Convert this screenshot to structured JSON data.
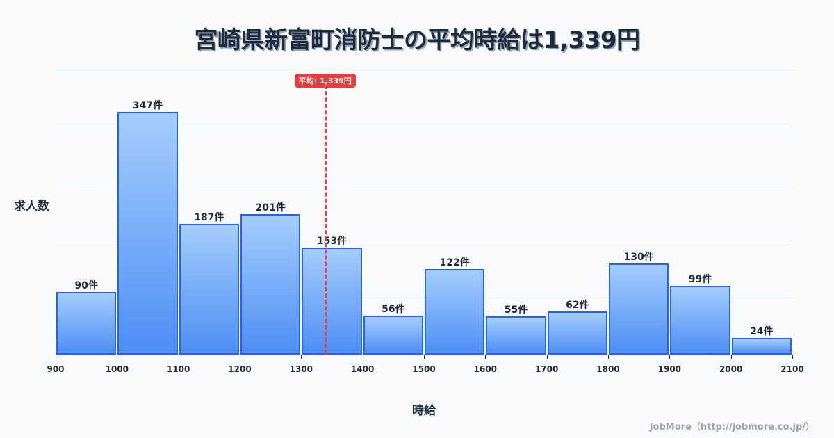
{
  "header": {
    "title": "宮崎県新富町消防士の平均時給は1,339円"
  },
  "axes": {
    "ylabel": "求人数",
    "xlabel": "時給"
  },
  "average": {
    "label": "平均: 1,339円",
    "value": 1339,
    "color": "#e53e3e"
  },
  "footer": {
    "credit": "JobMore（http://jobmore.co.jp/）"
  },
  "colors": {
    "bar_border": "#2563eb",
    "bar_top": "#a5cdfc",
    "bar_bottom": "#4d8ef5",
    "grid": "#e2e8f0"
  },
  "chart_data": {
    "type": "bar",
    "title": "宮崎県新富町消防士の平均時給は1,339円",
    "xlabel": "時給",
    "ylabel": "求人数",
    "bins": [
      [
        900,
        1000
      ],
      [
        1000,
        1100
      ],
      [
        1100,
        1200
      ],
      [
        1200,
        1300
      ],
      [
        1300,
        1400
      ],
      [
        1400,
        1500
      ],
      [
        1500,
        1600
      ],
      [
        1600,
        1700
      ],
      [
        1700,
        1800
      ],
      [
        1800,
        1900
      ],
      [
        1900,
        2000
      ],
      [
        2000,
        2100
      ]
    ],
    "categories": [
      "900-1000",
      "1000-1100",
      "1100-1200",
      "1200-1300",
      "1300-1400",
      "1400-1500",
      "1500-1600",
      "1600-1700",
      "1700-1800",
      "1800-1900",
      "1900-2000",
      "2000-2100"
    ],
    "values": [
      90,
      347,
      187,
      201,
      153,
      56,
      122,
      55,
      62,
      130,
      99,
      24
    ],
    "value_labels": [
      "90件",
      "347件",
      "187件",
      "201件",
      "153件",
      "56件",
      "122件",
      "55件",
      "62件",
      "130件",
      "99件",
      "24件"
    ],
    "x_ticks": [
      "900",
      "1000",
      "1100",
      "1200",
      "1300",
      "1400",
      "1500",
      "1600",
      "1700",
      "1800",
      "1900",
      "2000",
      "2100"
    ],
    "xlim": [
      900,
      2100
    ],
    "ylim": [
      0,
      408
    ],
    "grid": true,
    "annotations": [
      {
        "type": "vline",
        "x": 1339,
        "label": "平均: 1,339円"
      }
    ]
  }
}
